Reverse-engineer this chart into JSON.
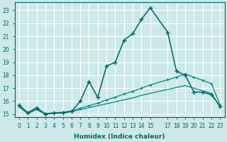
{
  "xlabel": "Humidex (Indice chaleur)",
  "background_color": "#cce8e8",
  "grid_color": "#ffffff",
  "line_color_dark": "#006666",
  "line_color_mid": "#008888",
  "xlim": [
    -0.5,
    23.5
  ],
  "ylim": [
    14.75,
    23.6
  ],
  "x_ticks": [
    0,
    1,
    2,
    3,
    4,
    5,
    6,
    7,
    8,
    9,
    10,
    11,
    12,
    13,
    14,
    15,
    17,
    18,
    19,
    20,
    21,
    22,
    23
  ],
  "x_tick_labels": [
    "0",
    "1",
    "2",
    "3",
    "4",
    "5",
    "6",
    "7",
    "8",
    "9",
    "10",
    "11",
    "12",
    "13",
    "14",
    "15",
    "17",
    "18",
    "19",
    "20",
    "21",
    "22",
    "23"
  ],
  "y_ticks": [
    15,
    16,
    17,
    18,
    19,
    20,
    21,
    22,
    23
  ],
  "series1_x": [
    0,
    1,
    2,
    3,
    4,
    5,
    6,
    7,
    8,
    9,
    10,
    11,
    12,
    13,
    14,
    15,
    17,
    18,
    19,
    20,
    21,
    22,
    23
  ],
  "series1_y": [
    15.7,
    15.1,
    15.5,
    15.0,
    15.1,
    15.1,
    15.2,
    16.0,
    17.5,
    16.3,
    18.7,
    19.0,
    20.7,
    21.2,
    22.3,
    23.2,
    21.3,
    18.3,
    18.0,
    16.7,
    16.7,
    16.5,
    15.6
  ],
  "series2_x": [
    0,
    1,
    2,
    3,
    4,
    5,
    6,
    7,
    8,
    9,
    10,
    11,
    12,
    13,
    14,
    15,
    17,
    18,
    19,
    20,
    21,
    22,
    23
  ],
  "series2_y": [
    15.6,
    15.1,
    15.4,
    15.05,
    15.1,
    15.15,
    15.25,
    15.45,
    15.65,
    15.85,
    16.1,
    16.3,
    16.55,
    16.75,
    17.0,
    17.25,
    17.65,
    17.85,
    18.1,
    17.85,
    17.6,
    17.35,
    15.7
  ],
  "series3_x": [
    0,
    1,
    2,
    3,
    4,
    5,
    6,
    7,
    8,
    9,
    10,
    11,
    12,
    13,
    14,
    15,
    17,
    18,
    19,
    20,
    21,
    22,
    23
  ],
  "series3_y": [
    15.55,
    15.05,
    15.35,
    15.0,
    15.05,
    15.1,
    15.2,
    15.35,
    15.5,
    15.65,
    15.8,
    15.95,
    16.1,
    16.25,
    16.45,
    16.6,
    16.9,
    17.05,
    17.2,
    17.0,
    16.8,
    16.6,
    15.55
  ]
}
